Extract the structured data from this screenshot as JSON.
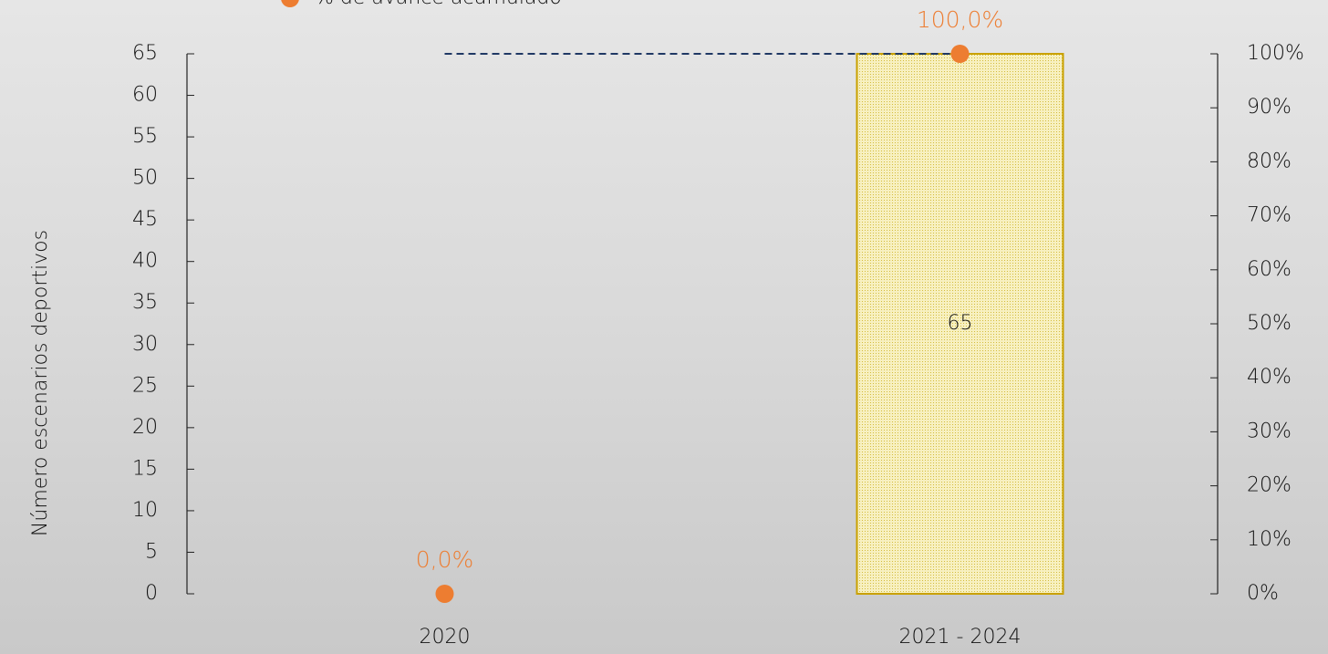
{
  "chart_data": {
    "type": "bar",
    "categories": [
      "2020",
      "2021 - 2024"
    ],
    "ylabel": "Número escenarios deportivos",
    "ylim": [
      0,
      65
    ],
    "yticks": [
      0,
      5,
      10,
      15,
      20,
      25,
      30,
      35,
      40,
      45,
      50,
      55,
      60,
      65
    ],
    "y2lim": [
      0,
      100
    ],
    "y2ticks": [
      {
        "value": 0,
        "label": "0%"
      },
      {
        "value": 10,
        "label": "10%"
      },
      {
        "value": 20,
        "label": "20%"
      },
      {
        "value": 30,
        "label": "30%"
      },
      {
        "value": 40,
        "label": "40%"
      },
      {
        "value": 50,
        "label": "50%"
      },
      {
        "value": 60,
        "label": "60%"
      },
      {
        "value": 70,
        "label": "70%"
      },
      {
        "value": 80,
        "label": "80%"
      },
      {
        "value": 90,
        "label": "90%"
      },
      {
        "value": 100,
        "label": "100%"
      }
    ],
    "series": [
      {
        "type": "bar",
        "color": "#f4eaa8",
        "edgecolor": "#c9a100",
        "values": [
          null,
          65
        ]
      },
      {
        "type": "line",
        "color": "#1f3864",
        "linestyle": "dashed",
        "values": [
          65,
          65
        ]
      },
      {
        "name": "% de avance acumulado",
        "type": "scatter",
        "axis": "y2",
        "color": "#ed7d31",
        "values": [
          0,
          100
        ],
        "value_labels": [
          "0,0%",
          "100,0%"
        ]
      }
    ]
  }
}
